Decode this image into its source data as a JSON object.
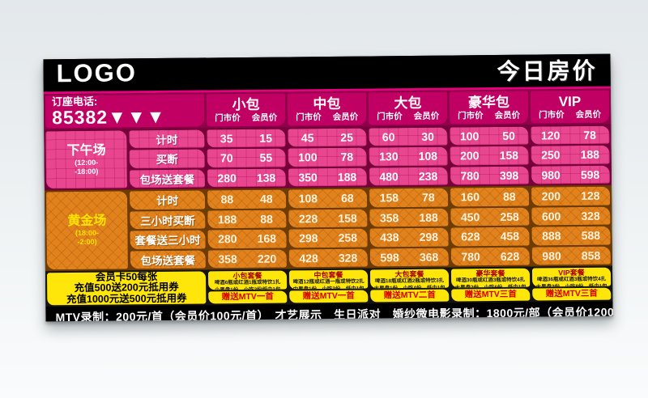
{
  "header": {
    "logo": "LOGO",
    "title": "今日房价"
  },
  "phone": {
    "label": "订座电话:",
    "number": "85382▼▼▼"
  },
  "price_labels": {
    "retail": "门市价",
    "member": "会员价"
  },
  "columns": [
    {
      "name": "小包"
    },
    {
      "name": "中包"
    },
    {
      "name": "大包"
    },
    {
      "name": "豪华包"
    },
    {
      "name": "VIP"
    }
  ],
  "sessions": [
    {
      "name": "下午场",
      "time1": "(12:00-",
      "time2": "-18:00)",
      "rows": [
        {
          "label": "计时",
          "prices": [
            [
              35,
              15
            ],
            [
              45,
              25
            ],
            [
              60,
              30
            ],
            [
              100,
              50
            ],
            [
              120,
              78
            ]
          ]
        },
        {
          "label": "买断",
          "prices": [
            [
              70,
              55
            ],
            [
              100,
              78
            ],
            [
              130,
              108
            ],
            [
              200,
              158
            ],
            [
              250,
              188
            ]
          ]
        },
        {
          "label": "包场送套餐",
          "prices": [
            [
              280,
              138
            ],
            [
              350,
              188
            ],
            [
              480,
              238
            ],
            [
              780,
              398
            ],
            [
              980,
              598
            ]
          ]
        }
      ]
    },
    {
      "name": "黄金场",
      "time1": "(18:00-",
      "time2": "-2:00)",
      "rows": [
        {
          "label": "计时",
          "prices": [
            [
              88,
              48
            ],
            [
              108,
              68
            ],
            [
              158,
              78
            ],
            [
              160,
              88
            ],
            [
              200,
              128
            ]
          ]
        },
        {
          "label": "三小时买断",
          "prices": [
            [
              188,
              88
            ],
            [
              228,
              158
            ],
            [
              358,
              188
            ],
            [
              450,
              258
            ],
            [
              600,
              328
            ]
          ]
        },
        {
          "label": "套餐送三小时",
          "prices": [
            [
              280,
              168
            ],
            [
              298,
              258
            ],
            [
              438,
              298
            ],
            [
              628,
              458
            ],
            [
              888,
              588
            ]
          ]
        },
        {
          "label": "包场送套餐",
          "prices": [
            [
              358,
              220
            ],
            [
              428,
              328
            ],
            [
              598,
              368
            ],
            [
              780,
              628
            ],
            [
              980,
              858
            ]
          ]
        }
      ]
    }
  ],
  "membership": {
    "line1": "会员卡50每张",
    "line2": "充值500送200元抵用券",
    "line3": "充值1000元送500元抵用券"
  },
  "packages": [
    {
      "title": "小包套餐",
      "line1": "啤酒6瓶或红酒1瓶或特饮1扎",
      "line2": "小果盘1份，小吃2份纸巾1包",
      "gift": "赠送MTV一首"
    },
    {
      "title": "中包套餐",
      "line1": "啤酒12瓶或红酒一瓶或特饮2扎",
      "line2": "中果盘1份，小吃3份，纸巾1包",
      "gift": "赠送MTV一首"
    },
    {
      "title": "大包套餐",
      "line1": "啤酒18瓶或红酒2瓶或特饮3扎",
      "line2": "大果盘1份，小吃4份，纸巾1包",
      "gift": "赠送MTV二首"
    },
    {
      "title": "豪华套餐",
      "line1": "啤酒30瓶或红酒3瓶或特饮4扎",
      "line2": "大果盘2份，小吃6份，纸巾1包",
      "gift": "赠送MTV三首"
    },
    {
      "title": "VIP套餐",
      "line1": "啤酒36瓶或红酒3瓶或特饮4扎",
      "line2": "大果盘3份，小吃8份，纸巾1包",
      "gift": "赠送MTV三首"
    }
  ],
  "footer": {
    "text": "MTV录制：200元/首（会员价100元/首）　才艺展示　生日派对　婚纱微电影录制：1800元/部（会员价1200元/部）"
  },
  "colors": {
    "accent_magenta": "#e5007d",
    "header_magenta": "#c10063",
    "pink_cell": "#e8478f",
    "orange_cell": "#e2821d",
    "yellow": "#ffe60a",
    "gift_red": "#d40000",
    "session_gold": "#ffe400"
  }
}
